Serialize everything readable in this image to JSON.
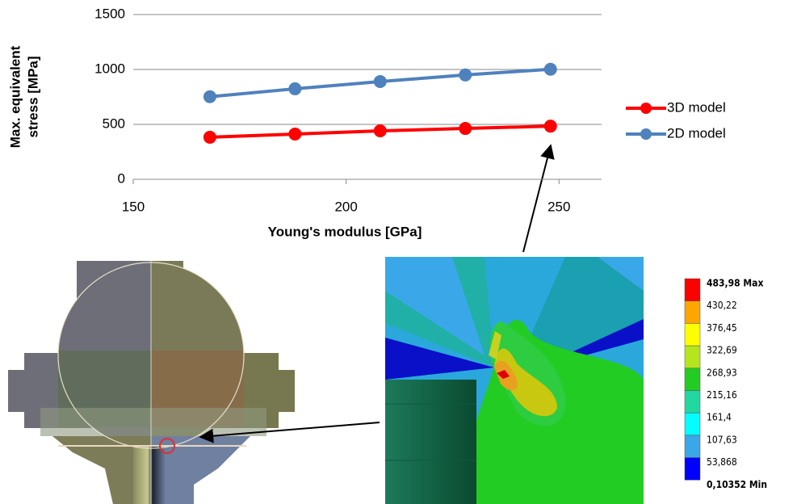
{
  "chart_data": {
    "type": "line",
    "x_label": "Young's modulus [GPa]",
    "y_label": [
      "Max. equivalent",
      "stress [MPa]"
    ],
    "x": [
      168,
      188,
      208,
      228,
      248
    ],
    "series": [
      {
        "name": "3D model",
        "color": "#ff0000",
        "values": [
          383,
          412,
          441,
          463,
          483.98
        ]
      },
      {
        "name": "2D model",
        "color": "#4f81bd",
        "values": [
          752,
          824,
          890,
          950,
          1002
        ]
      }
    ],
    "xlim": [
      150,
      260
    ],
    "xticks": [
      150,
      200,
      250
    ],
    "ylim": [
      0,
      1500
    ],
    "yticks": [
      0,
      500,
      1000,
      1500
    ],
    "grid": true,
    "legend": "right"
  },
  "contour_legend": {
    "labels": [
      "483,98 Max",
      "430,22",
      "376,45",
      "322,69",
      "268,93",
      "215,16",
      "161,4",
      "107,63",
      "53,868",
      "0,10352 Min"
    ],
    "colors": [
      "#ff0000",
      "#ffa500",
      "#ffff00",
      "#b5e61d",
      "#22cc22",
      "#20d8a0",
      "#00ffff",
      "#3aa8e8",
      "#0000ff"
    ]
  }
}
